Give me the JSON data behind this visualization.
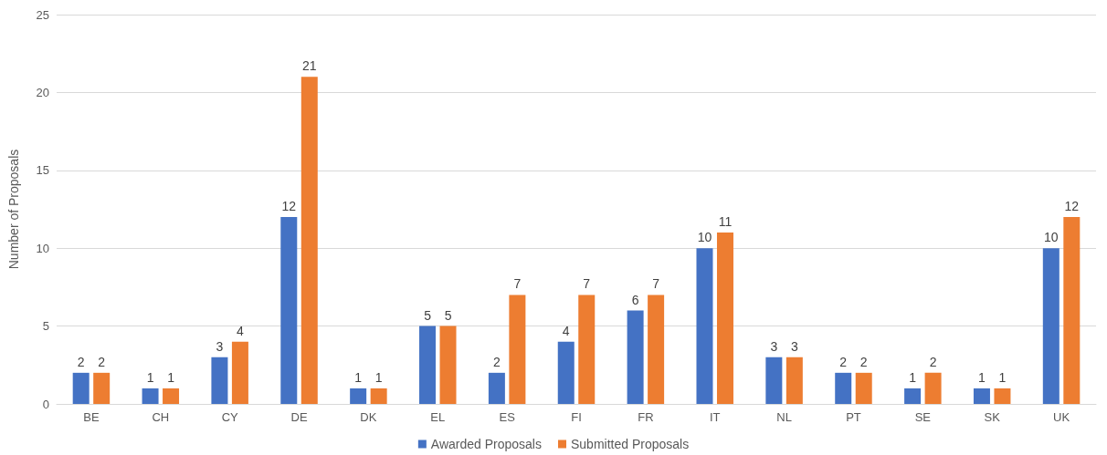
{
  "chart_data": {
    "type": "bar",
    "ylabel": "Number of Proposals",
    "categories": [
      "BE",
      "CH",
      "CY",
      "DE",
      "DK",
      "EL",
      "ES",
      "FI",
      "FR",
      "IT",
      "NL",
      "PT",
      "SE",
      "SK",
      "UK"
    ],
    "series": [
      {
        "name": "Awarded Proposals",
        "color": "#4472c4",
        "values": [
          2,
          1,
          3,
          12,
          1,
          5,
          2,
          4,
          6,
          10,
          3,
          2,
          1,
          1,
          10
        ]
      },
      {
        "name": "Submitted Proposals",
        "color": "#ed7d31",
        "values": [
          2,
          1,
          4,
          21,
          1,
          5,
          7,
          7,
          7,
          11,
          3,
          2,
          2,
          1,
          12
        ]
      }
    ],
    "ylim": [
      0,
      25
    ],
    "yticks": [
      0,
      5,
      10,
      15,
      20,
      25
    ],
    "grid": "y",
    "legend": "bottom",
    "data_labels": true
  }
}
